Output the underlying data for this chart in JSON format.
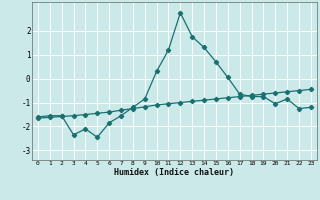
{
  "xlabel": "Humidex (Indice chaleur)",
  "background_color": "#cce9e9",
  "grid_color": "#ffffff",
  "line_color": "#1a7070",
  "x_values": [
    0,
    1,
    2,
    3,
    4,
    5,
    6,
    7,
    8,
    9,
    10,
    11,
    12,
    13,
    14,
    15,
    16,
    17,
    18,
    19,
    20,
    21,
    22,
    23
  ],
  "line1_y": [
    -1.6,
    -1.55,
    -1.55,
    -2.35,
    -2.1,
    -2.45,
    -1.85,
    -1.55,
    -1.2,
    -0.85,
    0.3,
    1.2,
    2.75,
    1.75,
    1.3,
    0.7,
    0.05,
    -0.65,
    -0.75,
    -0.75,
    -1.05,
    -0.85,
    -1.25,
    -1.2
  ],
  "line2_y": [
    -1.65,
    -1.62,
    -1.58,
    -1.55,
    -1.5,
    -1.45,
    -1.4,
    -1.32,
    -1.25,
    -1.18,
    -1.1,
    -1.05,
    -1.0,
    -0.95,
    -0.9,
    -0.85,
    -0.8,
    -0.75,
    -0.7,
    -0.65,
    -0.6,
    -0.55,
    -0.5,
    -0.45
  ],
  "ylim": [
    -3.4,
    3.2
  ],
  "yticks": [
    -3,
    -2,
    -1,
    0,
    1,
    2
  ],
  "ytick_labels": [
    "-3",
    "-2",
    "-1",
    "0",
    "1",
    "2"
  ],
  "xtick_labels": [
    "0",
    "1",
    "2",
    "3",
    "4",
    "5",
    "6",
    "7",
    "8",
    "9",
    "10",
    "11",
    "12",
    "13",
    "14",
    "15",
    "16",
    "17",
    "18",
    "19",
    "20",
    "21",
    "22",
    "23"
  ],
  "marker": "D",
  "markersize": 2.2,
  "linewidth": 0.9
}
